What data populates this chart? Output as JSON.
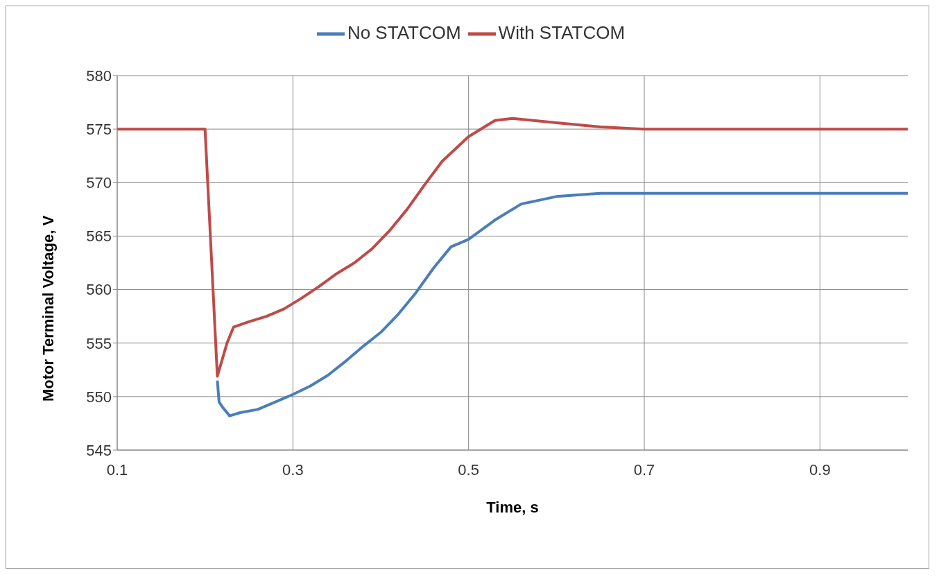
{
  "chart_data": {
    "type": "line",
    "xlabel": "Time, s",
    "ylabel": "Motor Terminal Voltage, V",
    "xlim": [
      0.1,
      1.0
    ],
    "xticks": [
      0.1,
      0.3,
      0.5,
      0.7,
      0.9
    ],
    "ylim": [
      545,
      580
    ],
    "yticks": [
      545,
      550,
      555,
      560,
      565,
      570,
      575,
      580
    ],
    "grid": true,
    "legend": "top",
    "marker": "none",
    "line_style": "solid",
    "series": [
      {
        "name": "No STATCOM",
        "color": "#4a7ebb",
        "x": [
          0.214,
          0.216,
          0.22,
          0.228,
          0.24,
          0.26,
          0.28,
          0.3,
          0.32,
          0.34,
          0.36,
          0.38,
          0.4,
          0.42,
          0.44,
          0.46,
          0.48,
          0.5,
          0.53,
          0.56,
          0.6,
          0.65,
          0.7,
          0.8,
          0.9,
          1.0
        ],
        "values": [
          551.5,
          549.5,
          549,
          548.2,
          548.5,
          548.8,
          549.5,
          550.2,
          551,
          552,
          553.3,
          554.7,
          556,
          557.7,
          559.7,
          562,
          564,
          564.7,
          566.5,
          568,
          568.7,
          569,
          569,
          569,
          569,
          569
        ]
      },
      {
        "name": "With STATCOM",
        "color": "#be4b48",
        "x": [
          0.1,
          0.15,
          0.2,
          0.214,
          0.225,
          0.2325,
          0.25,
          0.27,
          0.29,
          0.31,
          0.33,
          0.35,
          0.37,
          0.39,
          0.41,
          0.43,
          0.45,
          0.47,
          0.5,
          0.53,
          0.55,
          0.6,
          0.65,
          0.7,
          0.8,
          0.9,
          1.0
        ],
        "values": [
          575,
          575,
          575,
          551.9,
          555,
          556.5,
          557,
          557.5,
          558.2,
          559.2,
          560.3,
          561.5,
          562.5,
          563.8,
          565.5,
          567.5,
          569.8,
          572,
          574.3,
          575.8,
          576,
          575.6,
          575.2,
          575,
          575,
          575,
          575
        ]
      }
    ]
  }
}
